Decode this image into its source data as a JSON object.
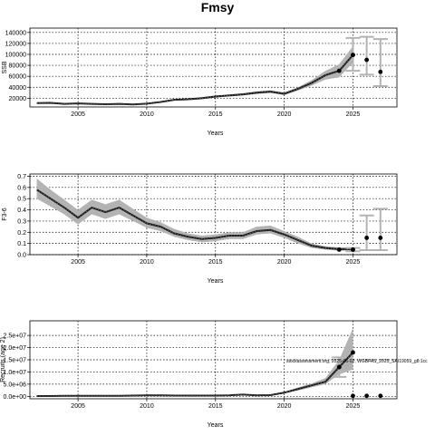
{
  "figure_title": "Fmsy",
  "note": "stockassessment.org, 2025-06-02, WGBFAS_2025_SAI19059_g8:1cc",
  "chart_data": [
    {
      "type": "line",
      "ylabel": "SSB",
      "xlabel": "Years",
      "xlim": [
        2001.5,
        2028.2
      ],
      "ylim": [
        4000,
        148000
      ],
      "grid": true,
      "x_ticks": [
        2005,
        2010,
        2015,
        2020,
        2025
      ],
      "x_tick_labels": [
        "2005",
        "2010",
        "2015",
        "2020",
        "2025"
      ],
      "y_ticks": [
        20000,
        40000,
        60000,
        80000,
        100000,
        120000,
        140000
      ],
      "y_tick_labels": [
        "20000",
        "40000",
        "60000",
        "80000",
        "100000",
        "120000",
        "140000"
      ],
      "years": [
        2002,
        2003,
        2004,
        2005,
        2006,
        2007,
        2008,
        2009,
        2010,
        2011,
        2012,
        2013,
        2014,
        2015,
        2016,
        2017,
        2018,
        2019,
        2020,
        2021,
        2022,
        2023,
        2024,
        2025
      ],
      "estimate": [
        11000,
        11500,
        9500,
        10500,
        9500,
        9000,
        9500,
        8500,
        10000,
        13000,
        17000,
        18000,
        20000,
        23000,
        25000,
        27000,
        30000,
        32000,
        28000,
        37000,
        48000,
        62000,
        70000,
        99000
      ],
      "lower": [
        10000,
        10500,
        8500,
        9500,
        8500,
        8000,
        8500,
        7500,
        9000,
        11500,
        15500,
        16500,
        18000,
        21000,
        23000,
        25000,
        27500,
        29500,
        25500,
        34000,
        43000,
        54000,
        58000,
        85000
      ],
      "upper": [
        12000,
        12500,
        10500,
        11500,
        10500,
        10000,
        10500,
        9500,
        11000,
        14500,
        18500,
        19500,
        22000,
        25000,
        27000,
        29000,
        32500,
        34500,
        30500,
        40000,
        53000,
        70000,
        82000,
        115000
      ],
      "points": [
        {
          "x": 2024,
          "y": 70000
        },
        {
          "x": 2025,
          "y": 99000
        }
      ],
      "forecast": [
        {
          "x": 2025,
          "y": 99000,
          "low": 70000,
          "high": 130000
        },
        {
          "x": 2026,
          "y": 90000,
          "low": 63000,
          "high": 132000
        },
        {
          "x": 2027,
          "y": 68000,
          "low": 42000,
          "high": 128000
        }
      ]
    },
    {
      "type": "line",
      "ylabel": "F3-6",
      "xlabel": "Years",
      "xlim": [
        2001.5,
        2028.2
      ],
      "ylim": [
        0,
        0.72
      ],
      "grid": true,
      "x_ticks": [
        2005,
        2010,
        2015,
        2020,
        2025
      ],
      "x_tick_labels": [
        "2005",
        "2010",
        "2015",
        "2020",
        "2025"
      ],
      "y_ticks": [
        0,
        0.1,
        0.2,
        0.3,
        0.4,
        0.5,
        0.6,
        0.7
      ],
      "y_tick_labels": [
        "0.0",
        "0.1",
        "0.2",
        "0.3",
        "0.4",
        "0.5",
        "0.6",
        "0.7"
      ],
      "years": [
        2002,
        2003,
        2004,
        2005,
        2006,
        2007,
        2008,
        2009,
        2010,
        2011,
        2012,
        2013,
        2014,
        2015,
        2016,
        2017,
        2018,
        2019,
        2020,
        2021,
        2022,
        2023,
        2024,
        2025
      ],
      "estimate": [
        0.58,
        0.5,
        0.42,
        0.33,
        0.42,
        0.38,
        0.42,
        0.35,
        0.28,
        0.25,
        0.19,
        0.16,
        0.14,
        0.15,
        0.17,
        0.17,
        0.21,
        0.22,
        0.18,
        0.13,
        0.08,
        0.06,
        0.05,
        0.05
      ],
      "lower": [
        0.5,
        0.43,
        0.36,
        0.27,
        0.36,
        0.32,
        0.36,
        0.3,
        0.24,
        0.21,
        0.16,
        0.13,
        0.11,
        0.12,
        0.14,
        0.14,
        0.18,
        0.19,
        0.15,
        0.1,
        0.06,
        0.045,
        0.035,
        0.035
      ],
      "upper": [
        0.68,
        0.58,
        0.49,
        0.4,
        0.49,
        0.45,
        0.49,
        0.41,
        0.33,
        0.29,
        0.23,
        0.19,
        0.17,
        0.18,
        0.2,
        0.2,
        0.25,
        0.26,
        0.21,
        0.16,
        0.1,
        0.075,
        0.065,
        0.065
      ],
      "points": [
        {
          "x": 2024,
          "y": 0.045
        },
        {
          "x": 2025,
          "y": 0.045
        }
      ],
      "forecast": [
        {
          "x": 2025,
          "y": 0.045,
          "low": 0.03,
          "high": 0.06
        },
        {
          "x": 2026,
          "y": 0.15,
          "low": 0.04,
          "high": 0.35
        },
        {
          "x": 2027,
          "y": 0.15,
          "low": 0.04,
          "high": 0.41
        }
      ]
    },
    {
      "type": "line",
      "ylabel": "Recruits (age 2)",
      "xlabel": "Years",
      "xlim": [
        2001.5,
        2028.2
      ],
      "ylim": [
        -1000000,
        31000000
      ],
      "grid": true,
      "x_ticks": [
        2005,
        2010,
        2015,
        2020,
        2025
      ],
      "x_tick_labels": [
        "2005",
        "2010",
        "2015",
        "2020",
        "2025"
      ],
      "y_ticks": [
        0,
        5000000,
        10000000,
        15000000,
        20000000,
        25000000
      ],
      "y_tick_labels": [
        "0.0e+00",
        "5.0e+06",
        "1.0e+07",
        "1.5e+07",
        "2.0e+07",
        "2.5e+07"
      ],
      "years": [
        2002,
        2003,
        2004,
        2005,
        2006,
        2007,
        2008,
        2009,
        2010,
        2011,
        2012,
        2013,
        2014,
        2015,
        2016,
        2017,
        2018,
        2019,
        2020,
        2021,
        2022,
        2023,
        2024,
        2025
      ],
      "estimate": [
        100000,
        100000,
        200000,
        200000,
        200000,
        200000,
        200000,
        300000,
        400000,
        400000,
        300000,
        300000,
        300000,
        300000,
        400000,
        700000,
        400000,
        500000,
        1500000,
        3000000,
        4500000,
        6000000,
        12000000,
        18000000
      ],
      "lower": [
        50000,
        50000,
        100000,
        100000,
        100000,
        100000,
        100000,
        200000,
        300000,
        300000,
        200000,
        200000,
        200000,
        200000,
        300000,
        500000,
        300000,
        400000,
        1200000,
        2400000,
        3700000,
        5000000,
        9000000,
        11000000
      ],
      "upper": [
        150000,
        150000,
        300000,
        300000,
        300000,
        300000,
        300000,
        400000,
        500000,
        500000,
        400000,
        400000,
        400000,
        400000,
        500000,
        900000,
        500000,
        600000,
        1800000,
        3600000,
        5300000,
        7500000,
        15000000,
        28000000
      ],
      "points": [
        {
          "x": 2024,
          "y": 12000000
        },
        {
          "x": 2025,
          "y": 18000000
        },
        {
          "x": 2025,
          "y": 200000
        },
        {
          "x": 2026,
          "y": 200000
        },
        {
          "x": 2027,
          "y": 200000
        }
      ],
      "forecast": [
        {
          "x": 2024,
          "y": 12000000,
          "low": 8000000,
          "high": 16000000
        }
      ]
    }
  ]
}
